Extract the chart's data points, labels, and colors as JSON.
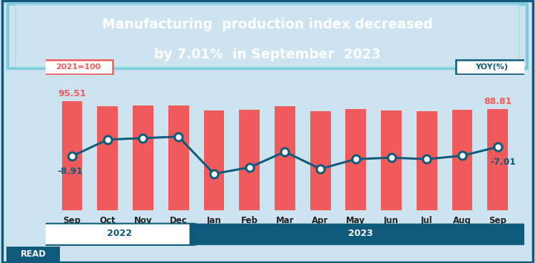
{
  "title_line1": "Manufacturing  production index decreased",
  "title_line2": "by 7.01%  in September  2023",
  "title_bg_color": "#0d5a7a",
  "title_text_color": "#ffffff",
  "bg_color": "#cde4f0",
  "chart_bg_color": "#cde4f0",
  "bar_color": "#f05a5a",
  "line_color": "#0d5a7a",
  "line_marker_facecolor": "#ffffff",
  "categories": [
    "Sep",
    "Oct",
    "Nov",
    "Dec",
    "Jan",
    "Feb",
    "Mar",
    "Apr",
    "May",
    "Jun",
    "Jul",
    "Aug",
    "Sep"
  ],
  "bar_values": [
    95.51,
    91.5,
    91.8,
    92.0,
    87.5,
    88.0,
    91.5,
    87.0,
    89.0,
    87.5,
    87.0,
    88.0,
    88.81
  ],
  "yoy_values": [
    -8.91,
    -5.5,
    -5.2,
    -4.9,
    -12.5,
    -11.2,
    -8.0,
    -11.5,
    -9.5,
    -9.2,
    -9.5,
    -8.8,
    -7.01
  ],
  "year_2022_label": "2022",
  "year_2023_label": "2023",
  "label_2021_100": "2021=100",
  "label_yoy": "YOY(%)",
  "first_bar_label": "95.51",
  "last_bar_label": "88.81",
  "first_yoy_label": "-8.91",
  "last_yoy_label": "-7.01",
  "read_label": "READ",
  "outer_border_color": "#0d5a7a"
}
